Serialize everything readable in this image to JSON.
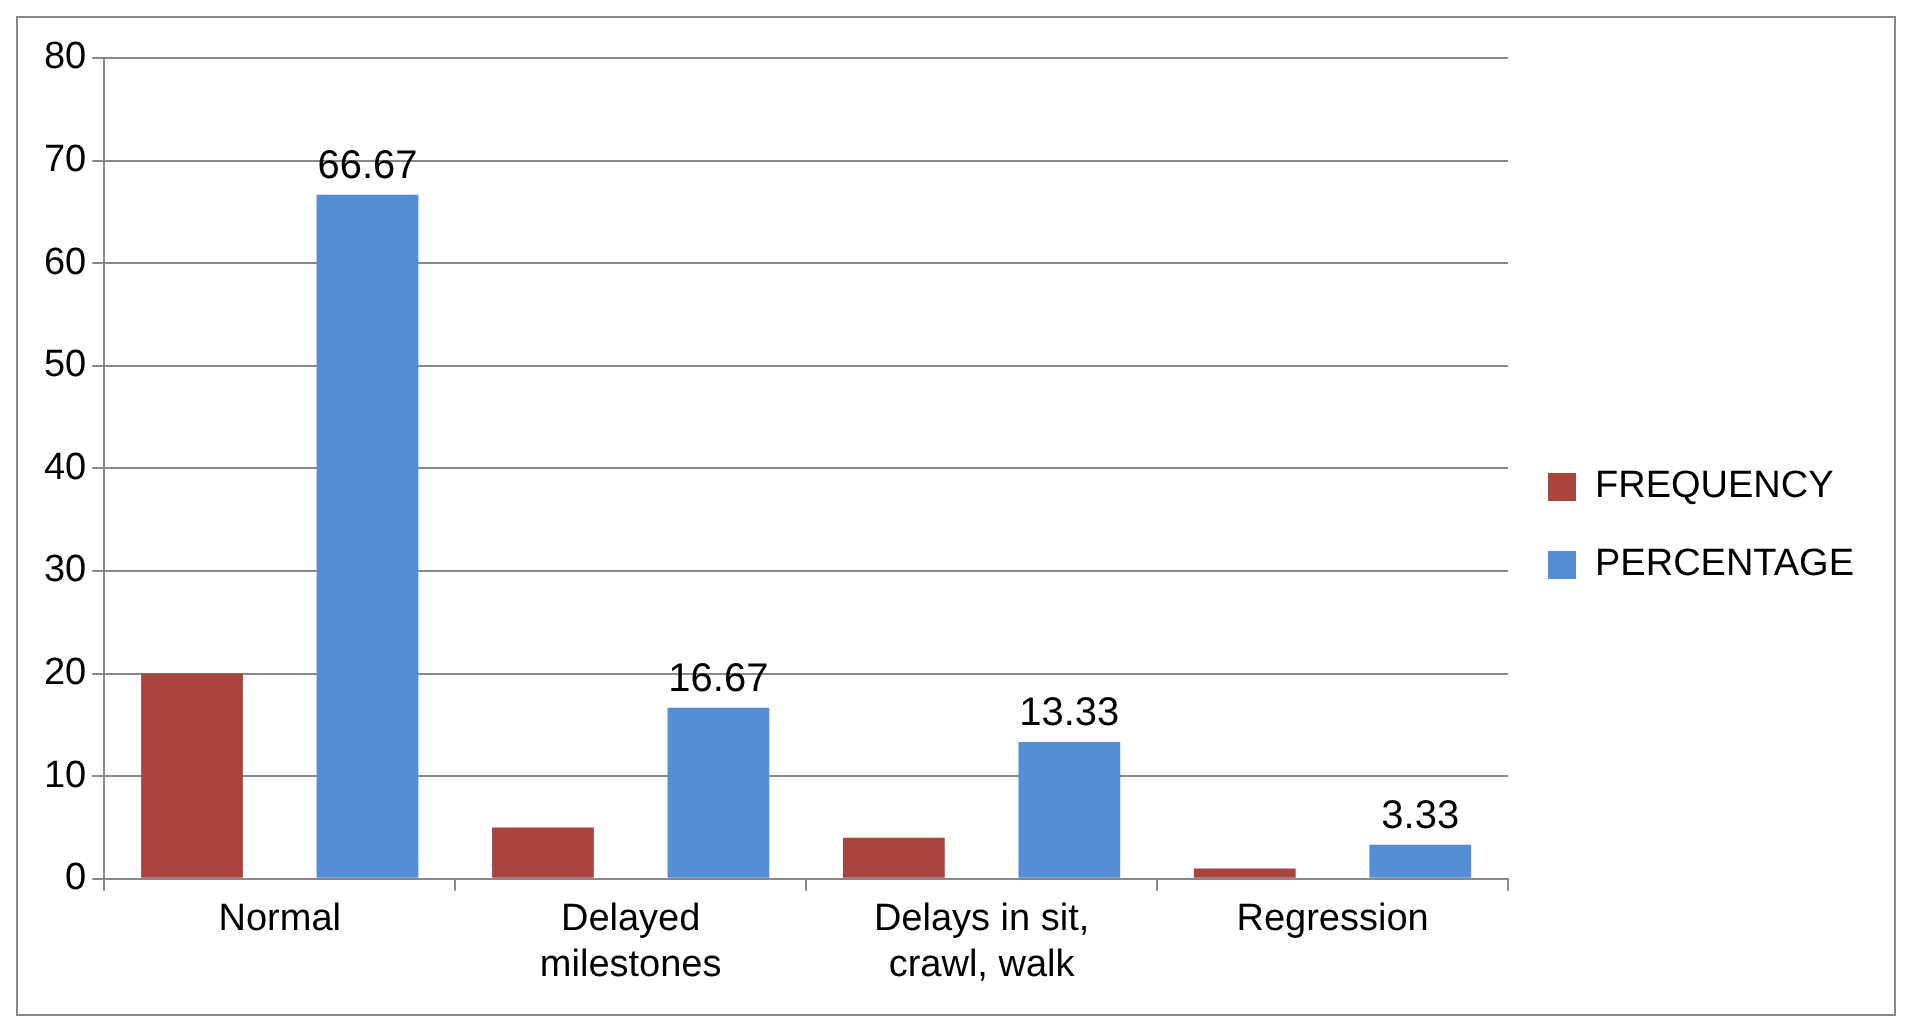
{
  "chart_data": {
    "type": "bar",
    "categories": [
      "Normal",
      "Delayed milestones",
      "Delays in sit, crawl, walk",
      "Regression"
    ],
    "series": [
      {
        "name": "FREQUENCY",
        "color": "#a9443f",
        "values": [
          20,
          5,
          4,
          1
        ]
      },
      {
        "name": "PERCENTAGE",
        "color": "#558ed5",
        "values": [
          66.67,
          16.67,
          13.33,
          3.33
        ],
        "value_labels": [
          "66.67",
          "16.67",
          "13.33",
          "3.33"
        ]
      }
    ],
    "ylim": [
      0,
      80
    ],
    "yticks": [
      0,
      10,
      20,
      30,
      40,
      50,
      60,
      70,
      80
    ],
    "grid": "y",
    "legend": "right"
  }
}
